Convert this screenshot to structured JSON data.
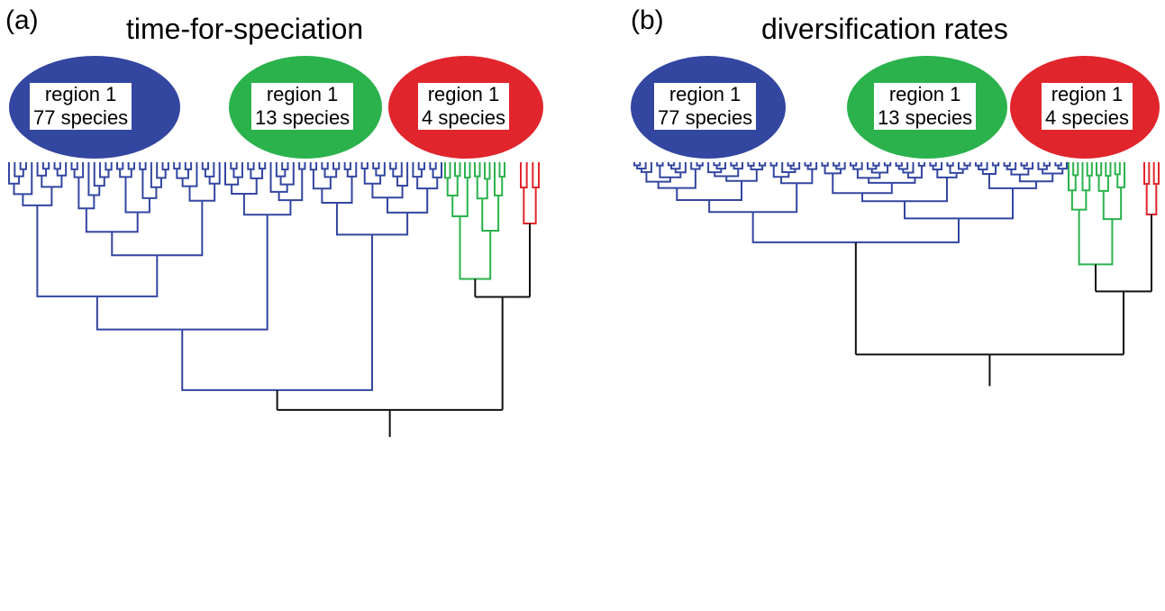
{
  "colors": {
    "blue_clade": "#3346a0",
    "green_clade": "#2bb24c",
    "red_clade": "#e1252c",
    "stem": "#111111"
  },
  "panels": [
    {
      "letter": "(a)",
      "title": "time-for-speciation",
      "groups": [
        {
          "name": "region 1",
          "count_label": "77 species",
          "color": "blue",
          "species": 77
        },
        {
          "name": "region 1",
          "count_label": "13 species",
          "color": "green",
          "species": 13
        },
        {
          "name": "region 1",
          "count_label": "4 species",
          "color": "red",
          "species": 4
        }
      ]
    },
    {
      "letter": "(b)",
      "title": "diversification rates",
      "groups": [
        {
          "name": "region 1",
          "count_label": "77 species",
          "color": "blue",
          "species": 77
        },
        {
          "name": "region 1",
          "count_label": "13 species",
          "color": "green",
          "species": 13
        },
        {
          "name": "region 1",
          "count_label": "4 species",
          "color": "red",
          "species": 4
        }
      ]
    }
  ]
}
